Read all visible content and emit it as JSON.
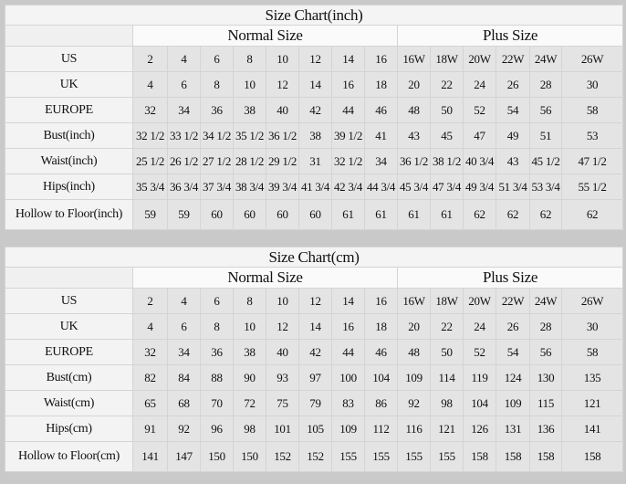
{
  "columns": [
    "2",
    "4",
    "6",
    "8",
    "10",
    "12",
    "14",
    "16",
    "16W",
    "18W",
    "20W",
    "22W",
    "24W",
    "26W"
  ],
  "charts": [
    {
      "title": "Size Chart(inch)",
      "normal_label": "Normal Size",
      "plus_label": "Plus Size",
      "rows": [
        {
          "label": "US",
          "values": [
            "2",
            "4",
            "6",
            "8",
            "10",
            "12",
            "14",
            "16",
            "16W",
            "18W",
            "20W",
            "22W",
            "24W",
            "26W"
          ]
        },
        {
          "label": "UK",
          "values": [
            "4",
            "6",
            "8",
            "10",
            "12",
            "14",
            "16",
            "18",
            "20",
            "22",
            "24",
            "26",
            "28",
            "30"
          ]
        },
        {
          "label": "EUROPE",
          "values": [
            "32",
            "34",
            "36",
            "38",
            "40",
            "42",
            "44",
            "46",
            "48",
            "50",
            "52",
            "54",
            "56",
            "58"
          ]
        },
        {
          "label": "Bust(inch)",
          "values": [
            "32 1/2",
            "33 1/2",
            "34 1/2",
            "35 1/2",
            "36 1/2",
            "38",
            "39 1/2",
            "41",
            "43",
            "45",
            "47",
            "49",
            "51",
            "53"
          ]
        },
        {
          "label": "Waist(inch)",
          "values": [
            "25 1/2",
            "26 1/2",
            "27 1/2",
            "28 1/2",
            "29 1/2",
            "31",
            "32 1/2",
            "34",
            "36 1/2",
            "38 1/2",
            "40 3/4",
            "43",
            "45 1/2",
            "47 1/2"
          ]
        },
        {
          "label": "Hips(inch)",
          "values": [
            "35 3/4",
            "36 3/4",
            "37 3/4",
            "38 3/4",
            "39 3/4",
            "41 3/4",
            "42 3/4",
            "44 3/4",
            "45 3/4",
            "47 3/4",
            "49 3/4",
            "51 3/4",
            "53 3/4",
            "55 1/2"
          ]
        },
        {
          "label": "Hollow to Floor(inch)",
          "values": [
            "59",
            "59",
            "60",
            "60",
            "60",
            "60",
            "61",
            "61",
            "61",
            "61",
            "62",
            "62",
            "62",
            "62"
          ]
        }
      ]
    },
    {
      "title": "Size Chart(cm)",
      "normal_label": "Normal Size",
      "plus_label": "Plus Size",
      "rows": [
        {
          "label": "US",
          "values": [
            "2",
            "4",
            "6",
            "8",
            "10",
            "12",
            "14",
            "16",
            "16W",
            "18W",
            "20W",
            "22W",
            "24W",
            "26W"
          ]
        },
        {
          "label": "UK",
          "values": [
            "4",
            "6",
            "8",
            "10",
            "12",
            "14",
            "16",
            "18",
            "20",
            "22",
            "24",
            "26",
            "28",
            "30"
          ]
        },
        {
          "label": "EUROPE",
          "values": [
            "32",
            "34",
            "36",
            "38",
            "40",
            "42",
            "44",
            "46",
            "48",
            "50",
            "52",
            "54",
            "56",
            "58"
          ]
        },
        {
          "label": "Bust(cm)",
          "values": [
            "82",
            "84",
            "88",
            "90",
            "93",
            "97",
            "100",
            "104",
            "109",
            "114",
            "119",
            "124",
            "130",
            "135"
          ]
        },
        {
          "label": "Waist(cm)",
          "values": [
            "65",
            "68",
            "70",
            "72",
            "75",
            "79",
            "83",
            "86",
            "92",
            "98",
            "104",
            "109",
            "115",
            "121"
          ]
        },
        {
          "label": "Hips(cm)",
          "values": [
            "91",
            "92",
            "96",
            "98",
            "101",
            "105",
            "109",
            "112",
            "116",
            "121",
            "126",
            "131",
            "136",
            "141"
          ]
        },
        {
          "label": "Hollow to Floor(cm)",
          "values": [
            "141",
            "147",
            "150",
            "150",
            "152",
            "152",
            "155",
            "155",
            "155",
            "155",
            "158",
            "158",
            "158",
            "158"
          ]
        }
      ]
    }
  ]
}
